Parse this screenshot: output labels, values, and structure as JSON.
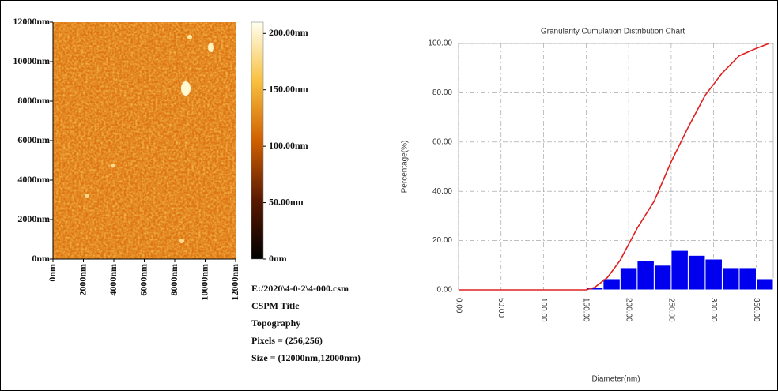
{
  "chart_data": [
    {
      "type": "heatmap",
      "xlim": [
        0,
        12000
      ],
      "ylim": [
        0,
        12000
      ],
      "xticks": [
        {
          "value": 0,
          "label": "0nm"
        },
        {
          "value": 2000,
          "label": "2000nm"
        },
        {
          "value": 4000,
          "label": "4000nm"
        },
        {
          "value": 6000,
          "label": "6000nm"
        },
        {
          "value": 8000,
          "label": "8000nm"
        },
        {
          "value": 10000,
          "label": "10000nm"
        },
        {
          "value": 12000,
          "label": "12000nm"
        }
      ],
      "yticks": [
        {
          "value": 0,
          "label": "0nm"
        },
        {
          "value": 2000,
          "label": "2000nm"
        },
        {
          "value": 4000,
          "label": "4000nm"
        },
        {
          "value": 6000,
          "label": "6000nm"
        },
        {
          "value": 8000,
          "label": "8000nm"
        },
        {
          "value": 10000,
          "label": "10000nm"
        },
        {
          "value": 12000,
          "label": "12000nm"
        }
      ],
      "colorbar": {
        "lim": [
          0,
          210
        ],
        "ticks": [
          {
            "value": 0,
            "label": "0nm"
          },
          {
            "value": 50,
            "label": "50.00nm"
          },
          {
            "value": 100,
            "label": "100.00nm"
          },
          {
            "value": 150,
            "label": "150.00nm"
          },
          {
            "value": 200,
            "label": "200.00nm"
          }
        ]
      },
      "annotations": [
        "E:/2020\\4-0-2\\4-000.csm",
        "CSPM Title",
        "Topography",
        "Pixels = (256,256)",
        "Size = (12000nm,12000nm)"
      ]
    },
    {
      "type": "histogram",
      "title": "Granularity Cumulation Distribution  Chart",
      "x_label": "Diameter(nm)",
      "y_label": "Percentage(%)",
      "bins": [
        150,
        170,
        190,
        210,
        230,
        250,
        270,
        290,
        310,
        330,
        350,
        370
      ],
      "values": [
        1,
        4.5,
        9,
        12,
        10,
        16,
        14,
        12.5,
        9,
        9,
        4.5
      ],
      "color": "#0000ee",
      "line": {
        "color": "#e02020",
        "x": [
          0,
          150,
          160,
          175,
          190,
          210,
          230,
          250,
          270,
          290,
          310,
          330,
          350,
          365
        ],
        "values": [
          0,
          0,
          1,
          5,
          12,
          25,
          36,
          52,
          66,
          79,
          88,
          95,
          98,
          100
        ]
      },
      "xlim": [
        0,
        370
      ],
      "ylim": [
        0,
        100
      ],
      "xticks": [
        {
          "value": 0,
          "label": "0.00"
        },
        {
          "value": 50,
          "label": "50.00"
        },
        {
          "value": 100,
          "label": "100.00"
        },
        {
          "value": 150,
          "label": "150.00"
        },
        {
          "value": 200,
          "label": "200.00"
        },
        {
          "value": 250,
          "label": "250.00"
        },
        {
          "value": 300,
          "label": "300.00"
        },
        {
          "value": 350,
          "label": "350.00"
        }
      ],
      "yticks": [
        {
          "value": 0,
          "label": "0.00"
        },
        {
          "value": 20,
          "label": "20.00"
        },
        {
          "value": 40,
          "label": "40.00"
        },
        {
          "value": 60,
          "label": "60.00"
        },
        {
          "value": 80,
          "label": "80.00"
        },
        {
          "value": 100,
          "label": "100.00"
        }
      ],
      "grid": true
    }
  ]
}
